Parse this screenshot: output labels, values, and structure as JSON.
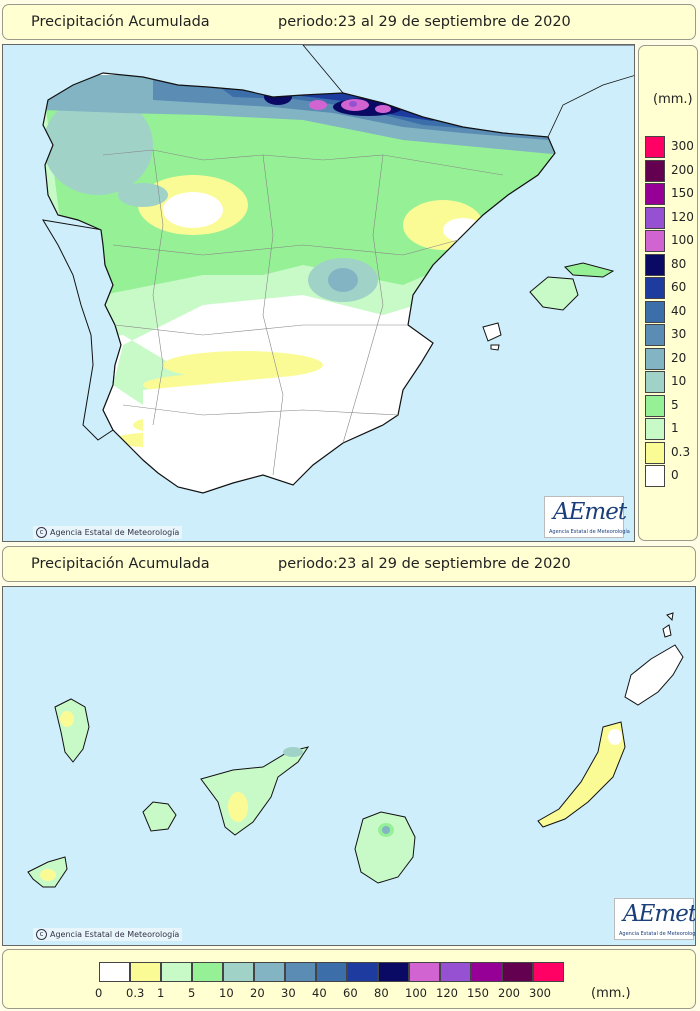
{
  "top_panel": {
    "title": "Precipitación Acumulada",
    "period": "periodo:23 al 29 de septiembre de 2020",
    "credit": "Agencia Estatal de Meteorología"
  },
  "bottom_panel": {
    "title": "Precipitación Acumulada",
    "period": "periodo:23 al 29 de septiembre de 2020",
    "credit": "Agencia Estatal de Meteorología"
  },
  "logo": {
    "name": "AEmet",
    "subtitle": "Agencia Estatal de Meteorología"
  },
  "legend": {
    "unit": "(mm.)",
    "bins": [
      {
        "label": "0",
        "color": "#ffffff"
      },
      {
        "label": "0.3",
        "color": "#fbfb96"
      },
      {
        "label": "1",
        "color": "#c8fac8"
      },
      {
        "label": "5",
        "color": "#96f096"
      },
      {
        "label": "10",
        "color": "#a0d2c8"
      },
      {
        "label": "20",
        "color": "#82b4c3"
      },
      {
        "label": "30",
        "color": "#5a8cb4"
      },
      {
        "label": "40",
        "color": "#3c6eaa"
      },
      {
        "label": "60",
        "color": "#1e3ca0"
      },
      {
        "label": "80",
        "color": "#0a0a64"
      },
      {
        "label": "100",
        "color": "#d264d2"
      },
      {
        "label": "120",
        "color": "#9650d2"
      },
      {
        "label": "150",
        "color": "#960096"
      },
      {
        "label": "200",
        "color": "#640050"
      },
      {
        "label": "300",
        "color": "#ff0064"
      }
    ]
  },
  "colors": {
    "sea": "#cfeefb",
    "panel": "#ffffd2",
    "border": "#666666"
  }
}
